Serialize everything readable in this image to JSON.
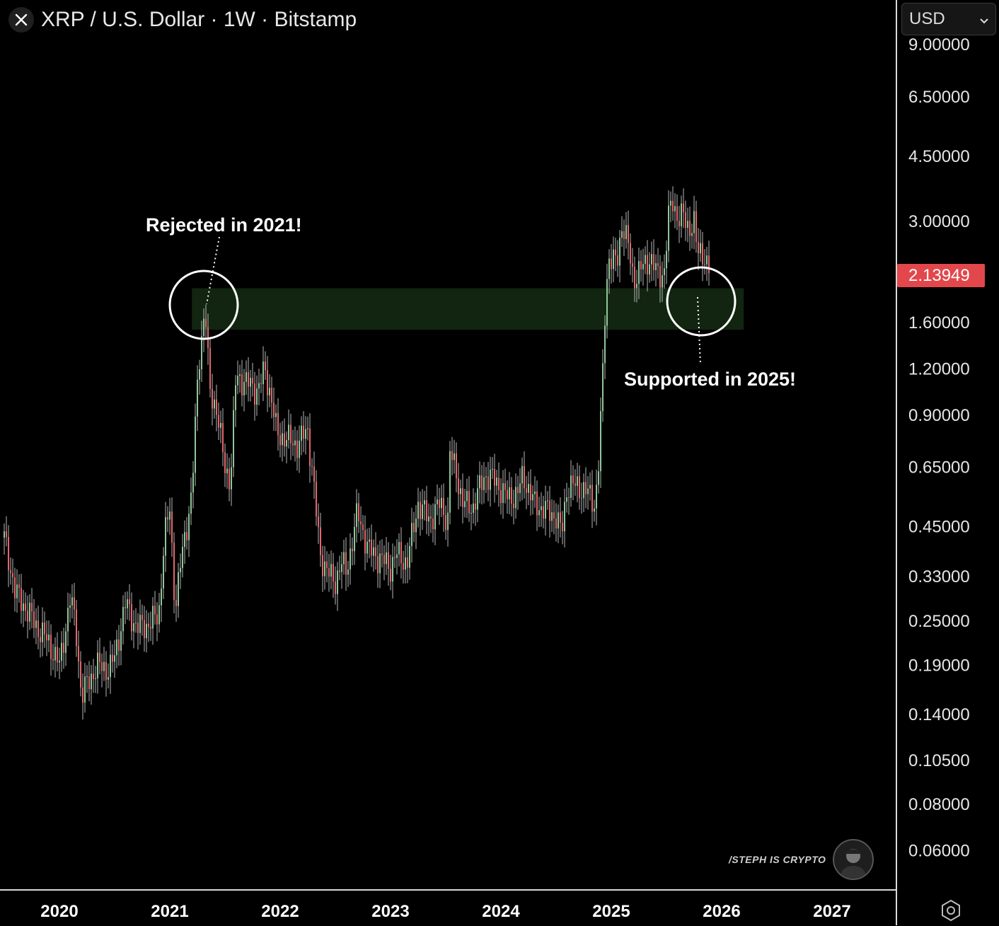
{
  "header": {
    "title": "XRP / U.S. Dollar · 1W · Bitstamp",
    "logo_icon": "x-logo-icon"
  },
  "currency_select": {
    "value": "USD"
  },
  "price_tag": "2.13949",
  "watermark": {
    "text": "/STEPH IS CRYPTO"
  },
  "chart_data": {
    "type": "candlestick",
    "title": "XRP / U.S. Dollar · 1W · Bitstamp",
    "y_scale": "log",
    "ylim": [
      0.05,
      9.0
    ],
    "y_ticks": [
      "9.00000",
      "6.50000",
      "4.50000",
      "3.00000",
      "1.60000",
      "1.20000",
      "0.90000",
      "0.65000",
      "0.45000",
      "0.33000",
      "0.25000",
      "0.19000",
      "0.14000",
      "0.10500",
      "0.08000",
      "0.06000"
    ],
    "x_ticks": [
      "2020",
      "2021",
      "2022",
      "2023",
      "2024",
      "2025",
      "2026",
      "2027"
    ],
    "last_price": 2.13949,
    "colors": {
      "up": "#8fc79a",
      "down": "#e3676b",
      "zone": "#112511",
      "last_price": "#e2474b"
    },
    "support_zone": {
      "low": 1.53,
      "high": 1.98,
      "from": 2021.2,
      "to": 2026.2
    },
    "annotations": [
      {
        "text": "Rejected in 2021!",
        "date": 2021.3,
        "price": 1.82
      },
      {
        "text": "Supported in 2025!",
        "date": 2025.8,
        "price": 1.84
      }
    ],
    "series": [
      [
        2019.5,
        0.42
      ],
      [
        2019.6,
        0.3
      ],
      [
        2019.7,
        0.27
      ],
      [
        2019.8,
        0.24
      ],
      [
        2019.9,
        0.22
      ],
      [
        2020.0,
        0.19
      ],
      [
        2020.1,
        0.29
      ],
      [
        2020.15,
        0.24
      ],
      [
        2020.2,
        0.155
      ],
      [
        2020.25,
        0.17
      ],
      [
        2020.35,
        0.19
      ],
      [
        2020.45,
        0.185
      ],
      [
        2020.5,
        0.2
      ],
      [
        2020.6,
        0.28
      ],
      [
        2020.7,
        0.24
      ],
      [
        2020.8,
        0.245
      ],
      [
        2020.9,
        0.26
      ],
      [
        2020.95,
        0.42
      ],
      [
        2021.0,
        0.5
      ],
      [
        2021.05,
        0.27
      ],
      [
        2021.1,
        0.36
      ],
      [
        2021.15,
        0.45
      ],
      [
        2021.2,
        0.55
      ],
      [
        2021.26,
        1.25
      ],
      [
        2021.32,
        1.75
      ],
      [
        2021.36,
        1.05
      ],
      [
        2021.42,
        0.95
      ],
      [
        2021.5,
        0.65
      ],
      [
        2021.55,
        0.6
      ],
      [
        2021.6,
        1.15
      ],
      [
        2021.7,
        1.1
      ],
      [
        2021.8,
        1.05
      ],
      [
        2021.86,
        1.2
      ],
      [
        2021.92,
        1.0
      ],
      [
        2021.97,
        0.8
      ],
      [
        2022.05,
        0.78
      ],
      [
        2022.15,
        0.75
      ],
      [
        2022.25,
        0.82
      ],
      [
        2022.3,
        0.6
      ],
      [
        2022.36,
        0.38
      ],
      [
        2022.45,
        0.33
      ],
      [
        2022.5,
        0.32
      ],
      [
        2022.55,
        0.36
      ],
      [
        2022.6,
        0.34
      ],
      [
        2022.7,
        0.49
      ],
      [
        2022.8,
        0.39
      ],
      [
        2022.9,
        0.37
      ],
      [
        2023.0,
        0.35
      ],
      [
        2023.05,
        0.38
      ],
      [
        2023.15,
        0.36
      ],
      [
        2023.25,
        0.52
      ],
      [
        2023.35,
        0.47
      ],
      [
        2023.45,
        0.52
      ],
      [
        2023.52,
        0.47
      ],
      [
        2023.53,
        0.72
      ],
      [
        2023.6,
        0.63
      ],
      [
        2023.65,
        0.52
      ],
      [
        2023.75,
        0.51
      ],
      [
        2023.85,
        0.62
      ],
      [
        2023.95,
        0.6
      ],
      [
        2024.05,
        0.54
      ],
      [
        2024.15,
        0.55
      ],
      [
        2024.2,
        0.62
      ],
      [
        2024.3,
        0.52
      ],
      [
        2024.4,
        0.5
      ],
      [
        2024.5,
        0.48
      ],
      [
        2024.55,
        0.43
      ],
      [
        2024.6,
        0.58
      ],
      [
        2024.7,
        0.58
      ],
      [
        2024.8,
        0.55
      ],
      [
        2024.85,
        0.52
      ],
      [
        2024.88,
        0.62
      ],
      [
        2024.92,
        1.1
      ],
      [
        2024.95,
        1.95
      ],
      [
        2024.98,
        2.4
      ],
      [
        2025.05,
        2.3
      ],
      [
        2025.1,
        3.0
      ],
      [
        2025.15,
        2.6
      ],
      [
        2025.2,
        2.1
      ],
      [
        2025.28,
        2.25
      ],
      [
        2025.35,
        2.4
      ],
      [
        2025.42,
        2.15
      ],
      [
        2025.48,
        2.2
      ],
      [
        2025.52,
        3.1
      ],
      [
        2025.56,
        3.45
      ],
      [
        2025.6,
        3.05
      ],
      [
        2025.65,
        3.1
      ],
      [
        2025.7,
        2.9
      ],
      [
        2025.75,
        2.95
      ],
      [
        2025.78,
        2.45
      ],
      [
        2025.82,
        2.55
      ],
      [
        2025.86,
        2.3
      ],
      [
        2025.9,
        2.14
      ]
    ]
  }
}
